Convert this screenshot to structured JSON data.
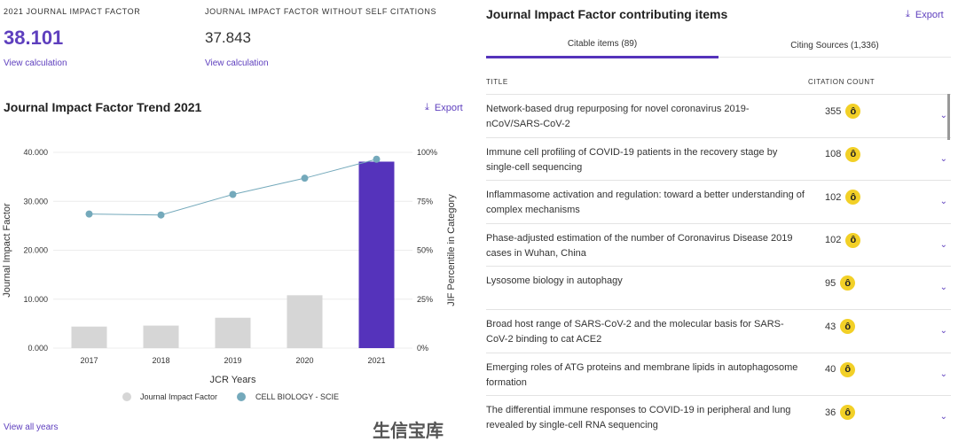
{
  "metrics": {
    "jif_label": "2021 JOURNAL IMPACT FACTOR",
    "jif_value": "38.101",
    "jif_link": "View calculation",
    "jif_noself_label": "JOURNAL IMPACT FACTOR WITHOUT SELF CITATIONS",
    "jif_noself_value": "37.843",
    "jif_noself_link": "View calculation"
  },
  "trend": {
    "title": "Journal Impact Factor Trend 2021",
    "export": "Export",
    "view_all": "View all years"
  },
  "chart_data": {
    "type": "bar",
    "title": "Journal Impact Factor Trend 2021",
    "xlabel": "JCR Years",
    "ylabel": "Journal Impact Factor",
    "y2label": "JIF Percentile in Category",
    "categories": [
      "2017",
      "2018",
      "2019",
      "2020",
      "2021"
    ],
    "ylim": [
      0,
      40
    ],
    "y2lim": [
      0,
      100
    ],
    "yticks": [
      "0.000",
      "10.000",
      "20.000",
      "30.000",
      "40.000"
    ],
    "y2ticks": [
      "0%",
      "25%",
      "50%",
      "75%",
      "100%"
    ],
    "series": [
      {
        "name": "Journal Impact Factor",
        "type": "bar",
        "values": [
          4.4,
          4.6,
          6.2,
          10.8,
          38.101
        ],
        "color": "#d6d6d6",
        "highlight_color": "#5533bb"
      },
      {
        "name": "CELL BIOLOGY - SCIE",
        "type": "line",
        "axis": "right",
        "values": [
          68.5,
          68,
          78.5,
          86.8,
          96.5
        ],
        "color": "#74a9bb"
      }
    ],
    "legend": "bottom",
    "grid": true
  },
  "items": {
    "title": "Journal Impact Factor contributing items",
    "export": "Export",
    "tabs": [
      {
        "label": "Citable items (89)",
        "active": true
      },
      {
        "label": "Citing Sources (1,336)",
        "active": false
      }
    ],
    "col_title": "TITLE",
    "col_count": "CITATION COUNT",
    "rows": [
      {
        "title": "Network-based drug repurposing for novel coronavirus 2019-nCoV/SARS-CoV-2",
        "count": "355"
      },
      {
        "title": "Immune cell profiling of COVID-19 patients in the recovery stage by single-cell sequencing",
        "count": "108"
      },
      {
        "title": "Inflammasome activation and regulation: toward a better understanding of complex mechanisms",
        "count": "102"
      },
      {
        "title": "Phase-adjusted estimation of the number of Coronavirus Disease 2019 cases in Wuhan, China",
        "count": "102"
      },
      {
        "title": "Lysosome biology in autophagy",
        "count": "95"
      },
      {
        "title": "Broad host range of SARS-CoV-2 and the molecular basis for SARS-CoV-2 binding to cat ACE2",
        "count": "43"
      },
      {
        "title": "Emerging roles of ATG proteins and membrane lipids in autophagosome formation",
        "count": "40"
      },
      {
        "title": "The differential immune responses to COVID-19 in peripheral and lung revealed by single-cell RNA sequencing",
        "count": "36"
      }
    ]
  },
  "watermark": "生信宝库"
}
